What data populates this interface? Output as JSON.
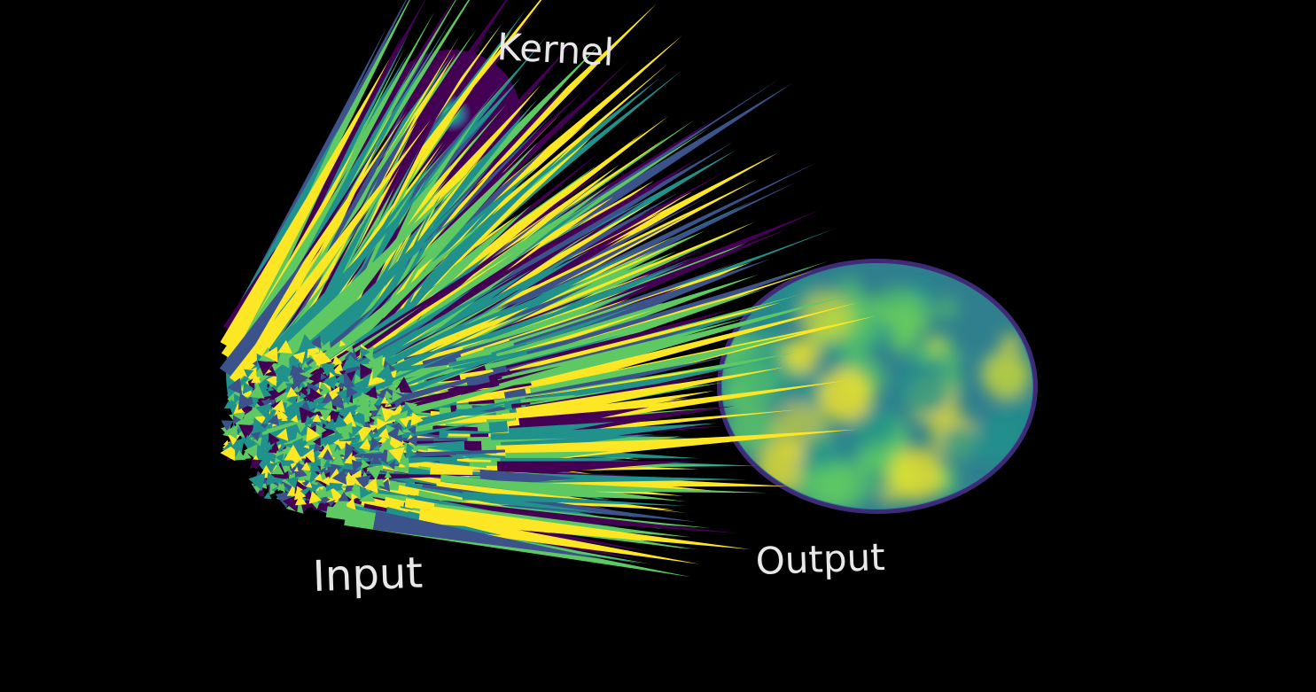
{
  "labels": {
    "kernel": "Kernel",
    "input": "Input",
    "output": "Output"
  },
  "colors": {
    "background": "#000000",
    "label_text": "#e8e8e8",
    "colormap": [
      "#440154",
      "#3b528b",
      "#21918c",
      "#5ec962",
      "#fde725"
    ]
  }
}
